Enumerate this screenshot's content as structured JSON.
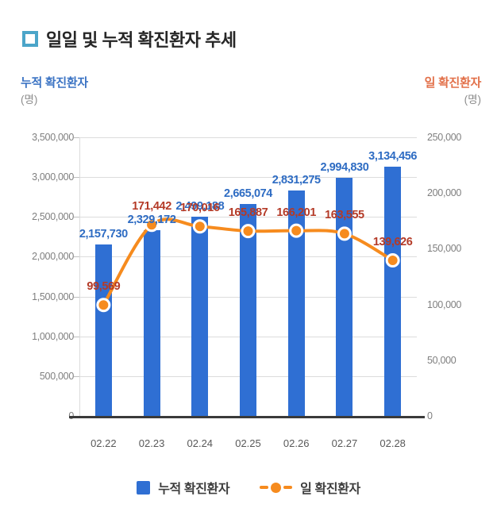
{
  "title": "일일 및 누적 확진환자 추세",
  "axes": {
    "left_title": "누적 확진환자",
    "left_unit": "(명)",
    "right_title": "일 확진환자",
    "right_unit": "(명)"
  },
  "legend": [
    {
      "label": "누적 확진환자",
      "type": "bar"
    },
    {
      "label": "일 확진환자",
      "type": "line"
    }
  ],
  "colors": {
    "bar_blue": "#2f6fd3",
    "line_orange": "#f68b1e",
    "marker_ring": "#ffffff",
    "label_blue": "#2e6cc3",
    "label_red": "#b43a27",
    "left_title_blue": "#3c74c4",
    "right_title_orange": "#e2714a",
    "tick_gray": "#7f7f7f",
    "xlabel_gray": "#595959",
    "grid_gray": "#dcdcdc",
    "tick_dash_gray": "#bfbfbf",
    "axis_dark": "#3a3a3a",
    "title_dark": "#262626",
    "title_bullet_blue": "#4ba5c9",
    "legend_text": "#3d3d3d"
  },
  "chart_data": {
    "type": "bar",
    "title": "일일 및 누적 확진환자 추세",
    "categories": [
      "02.22",
      "02.23",
      "02.24",
      "02.25",
      "02.26",
      "02.27",
      "02.28"
    ],
    "series": [
      {
        "name": "누적 확진환자",
        "type": "bar",
        "axis": "left",
        "values": [
          2157730,
          2329172,
          2499188,
          2665074,
          2831275,
          2994830,
          3134456
        ],
        "labels": [
          "2,157,730",
          "2,329,172",
          "2,499,188",
          "2,665,074",
          "2,831,275",
          "2,994,830",
          "3,134,456"
        ]
      },
      {
        "name": "일 확진환자",
        "type": "line",
        "axis": "right",
        "values": [
          99569,
          171442,
          170016,
          165887,
          166201,
          163555,
          139626
        ],
        "labels": [
          "99,569",
          "171,442",
          "170,016",
          "165,887",
          "166,201",
          "163,555",
          "139,626"
        ]
      }
    ],
    "left_axis": {
      "min": 0,
      "max": 3500000,
      "step": 500000,
      "ticks": [
        "3,500,000",
        "3,000,000",
        "2,500,000",
        "2,000,000",
        "1,500,000",
        "1,000,000",
        "500,000",
        "0"
      ]
    },
    "right_axis": {
      "min": 0,
      "max": 250000,
      "step": 50000,
      "ticks": [
        "250,000",
        "200,000",
        "150,000",
        "100,000",
        "50,000",
        "0"
      ]
    },
    "grid": "horizontal",
    "legend_position": "bottom"
  }
}
